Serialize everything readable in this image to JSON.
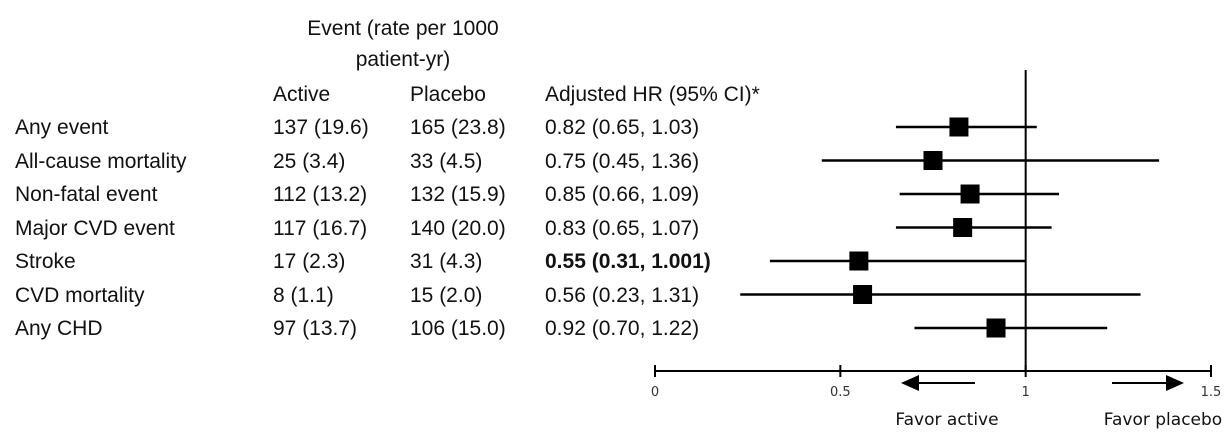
{
  "headers": {
    "event_line1": "Event (rate per 1000",
    "event_line2": "patient-yr)",
    "active": "Active",
    "placebo": "Placebo",
    "hr": "Adjusted HR (95% CI)*"
  },
  "rows": [
    {
      "label": "Any event",
      "active": "137 (19.6)",
      "placebo": "165 (23.8)",
      "hr_text": "0.82 (0.65, 1.03)",
      "bold": false
    },
    {
      "label": "All-cause mortality",
      "active": "25 (3.4)",
      "placebo": "33 (4.5)",
      "hr_text": "0.75 (0.45, 1.36)",
      "bold": false
    },
    {
      "label": "Non-fatal event",
      "active": "112 (13.2)",
      "placebo": "132 (15.9)",
      "hr_text": "0.85 (0.66, 1.09)",
      "bold": false
    },
    {
      "label": "Major CVD event",
      "active": "117 (16.7)",
      "placebo": "140 (20.0)",
      "hr_text": "0.83 (0.65, 1.07)",
      "bold": false
    },
    {
      "label": "Stroke",
      "active": "17 (2.3)",
      "placebo": "31 (4.3)",
      "hr_text": "0.55 (0.31, 1.001)",
      "bold": true
    },
    {
      "label": "CVD mortality",
      "active": "8 (1.1)",
      "placebo": "15 (2.0)",
      "hr_text": "0.56 (0.23, 1.31)",
      "bold": false
    },
    {
      "label": "Any CHD",
      "active": "97 (13.7)",
      "placebo": "106 (15.0)",
      "hr_text": "0.92 (0.70, 1.22)",
      "bold": false
    }
  ],
  "chart_data": {
    "type": "forest",
    "x_range": [
      0,
      1.5
    ],
    "x_ticks": [
      "0",
      "0.5",
      "1",
      "1.5"
    ],
    "reference_line": 1,
    "points": [
      {
        "hr": 0.82,
        "lo": 0.65,
        "hi": 1.03
      },
      {
        "hr": 0.75,
        "lo": 0.45,
        "hi": 1.36
      },
      {
        "hr": 0.85,
        "lo": 0.66,
        "hi": 1.09
      },
      {
        "hr": 0.83,
        "lo": 0.65,
        "hi": 1.07
      },
      {
        "hr": 0.55,
        "lo": 0.31,
        "hi": 1.001
      },
      {
        "hr": 0.56,
        "lo": 0.23,
        "hi": 1.31
      },
      {
        "hr": 0.92,
        "lo": 0.7,
        "hi": 1.22
      }
    ],
    "favor_left": "Favor active",
    "favor_right": "Favor placebo",
    "marker_color": "#000000"
  }
}
